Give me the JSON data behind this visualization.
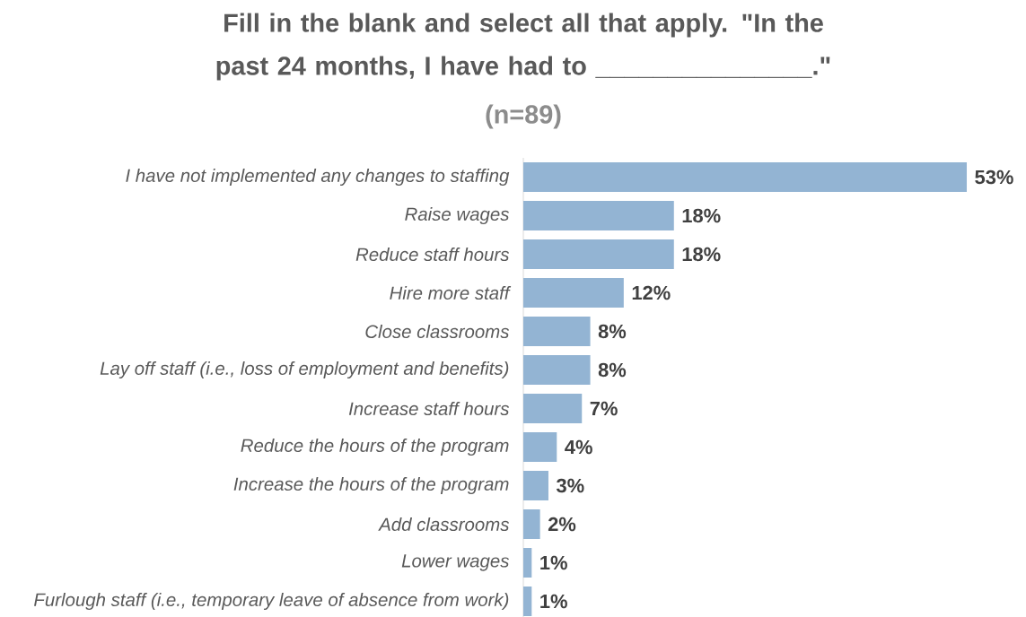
{
  "chart_data": {
    "type": "bar",
    "orientation": "horizontal",
    "title": "Fill in the blank and select all that apply. \"In the past 24 months, I have had to _______________.\"",
    "subtitle": "(n=89)",
    "categories": [
      "I have not implemented any changes to staffing",
      "Raise wages",
      "Reduce staff hours",
      "Hire more staff",
      "Close classrooms",
      "Lay off staff (i.e., loss of employment and benefits)",
      "Increase staff hours",
      "Reduce the hours of the program",
      "Increase the hours of the program",
      "Add classrooms",
      "Lower wages",
      "Furlough staff (i.e., temporary leave of absence from work)"
    ],
    "values": [
      53,
      18,
      18,
      12,
      8,
      8,
      7,
      4,
      3,
      2,
      1,
      1
    ],
    "value_labels": [
      "53%",
      "18%",
      "18%",
      "12%",
      "8%",
      "8%",
      "7%",
      "4%",
      "3%",
      "2%",
      "1%",
      "1%"
    ],
    "color": "#93b4d3"
  }
}
